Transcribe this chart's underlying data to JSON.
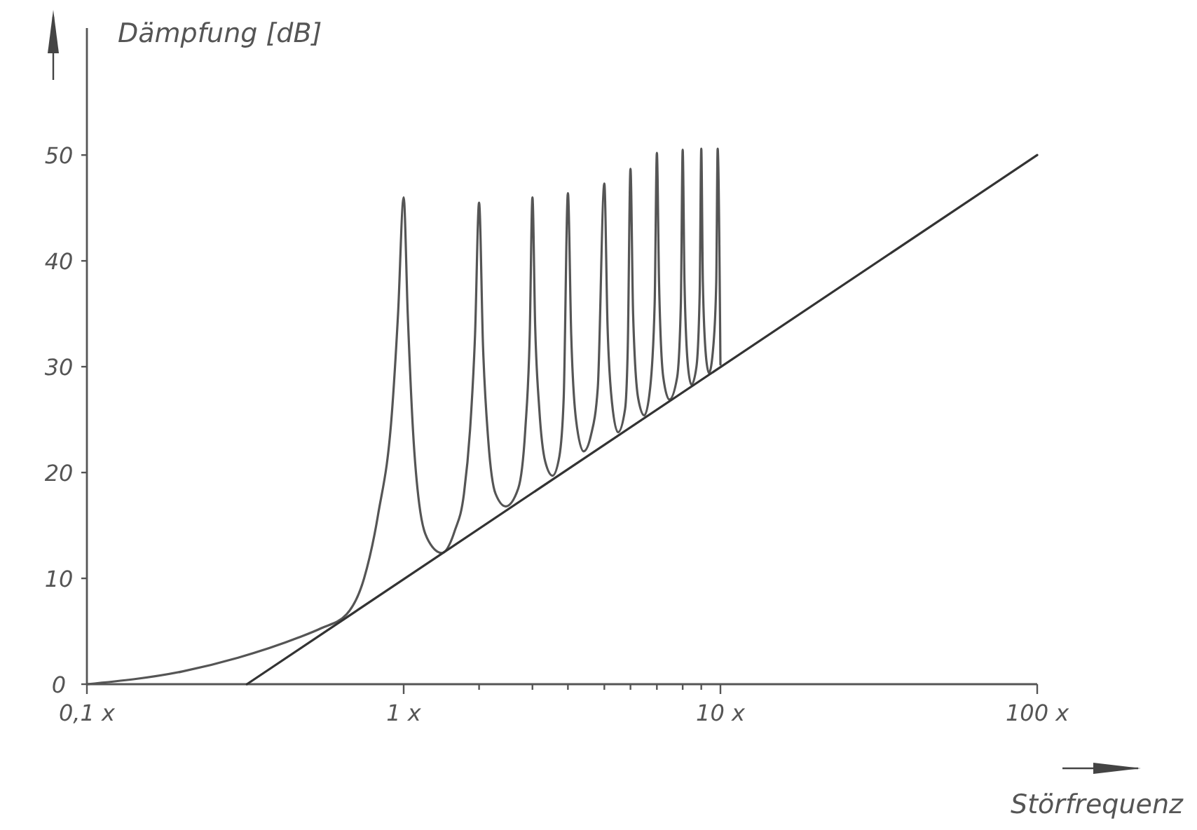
{
  "chart_data": {
    "type": "line",
    "xlabel": "Störfrequenz",
    "ylabel": "Dämpfung [dB]",
    "log": "x",
    "xlim": [
      0.1,
      100
    ],
    "ylim": [
      0,
      62
    ],
    "xticks": [
      {
        "value": 0.1,
        "label": "0,1 x"
      },
      {
        "value": 1,
        "label": "1 x"
      },
      {
        "value": 1.73,
        "label": null
      },
      {
        "value": 2.55,
        "label": null
      },
      {
        "value": 3.3,
        "label": null
      },
      {
        "value": 4.3,
        "label": null
      },
      {
        "value": 5.2,
        "label": null
      },
      {
        "value": 6.3,
        "label": null
      },
      {
        "value": 7.6,
        "label": null
      },
      {
        "value": 8.7,
        "label": null
      },
      {
        "value": 10,
        "label": "10 x"
      },
      {
        "value": 100,
        "label": "100 x"
      }
    ],
    "yticks": [
      0,
      10,
      20,
      30,
      40,
      50
    ],
    "grid": false,
    "marker": "none",
    "line_style": "solid",
    "series": [
      {
        "color": "#555555",
        "x": [
          0.1,
          0.2,
          0.3,
          0.465,
          0.55,
          0.66,
          0.75,
          0.83,
          0.92,
          0.96,
          1,
          1.03,
          1.07,
          1.12,
          1.2,
          1.32,
          1.45,
          1.55,
          1.62,
          1.68,
          1.73,
          1.78,
          1.85,
          1.95,
          2.1,
          2.3,
          2.42,
          2.5,
          2.55,
          2.6,
          2.68,
          2.8,
          2.95,
          3.1,
          3.2,
          3.3,
          3.38,
          3.5,
          3.7,
          3.9,
          4.1,
          4.3,
          4.4,
          4.55,
          4.75,
          5,
          5.1,
          5.2,
          5.3,
          5.5,
          5.75,
          6,
          6.2,
          6.3,
          6.4,
          6.6,
          6.9,
          7.3,
          7.5,
          7.6,
          7.7,
          7.9,
          8.1,
          8.4,
          8.6,
          8.7,
          8.8,
          9,
          9.2,
          9.5,
          9.7,
          9.8,
          10
        ],
        "values": [
          0,
          1.2,
          2.5,
          4.4,
          5.3,
          6.6,
          10,
          16,
          26,
          35,
          46,
          35,
          24,
          17,
          13.5,
          12.4,
          14.5,
          18,
          24,
          33,
          45.5,
          32,
          23,
          18,
          16.8,
          18.5,
          24,
          33,
          46,
          34,
          26,
          21,
          19.7,
          21.5,
          27,
          46.4,
          33,
          25,
          22,
          23.5,
          28,
          47.3,
          34,
          26.5,
          23.8,
          26,
          32,
          48.7,
          35,
          27,
          25.4,
          28,
          36,
          50.2,
          38,
          29,
          26.9,
          29,
          36,
          50.5,
          38,
          30,
          28.3,
          30,
          37,
          50.6,
          38,
          31,
          29.4,
          32,
          38,
          50.6,
          30.2
        ]
      },
      {
        "color": "#333333",
        "x": [
          0.32,
          100
        ],
        "values": [
          0,
          50
        ]
      }
    ]
  }
}
